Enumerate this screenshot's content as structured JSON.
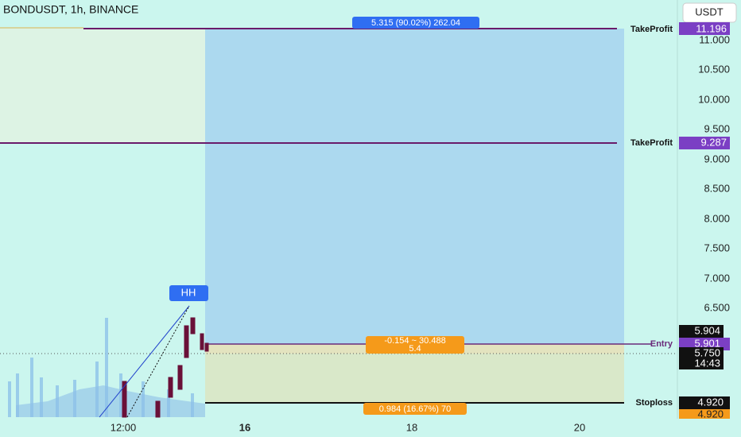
{
  "header": {
    "symbol": "BONDUSDT, 1h, BINANCE",
    "currency": "USDT"
  },
  "price_axis": {
    "ticks": [
      "11.000",
      "10.500",
      "10.000",
      "9.500",
      "9.000",
      "8.500",
      "8.000",
      "7.500",
      "7.000",
      "6.500"
    ]
  },
  "price_tags": {
    "take_profit_2": "11.196",
    "take_profit_1": "9.287",
    "last_high": "5.904",
    "entry": "5.901",
    "last_price": "5.750",
    "countdown": "14:43",
    "stoploss": "4.920",
    "stoploss_close": "4.920"
  },
  "levels": {
    "take_profit_2": "TakeProfit",
    "take_profit_1": "TakeProfit",
    "entry": "Entry",
    "stoploss": "Stoploss"
  },
  "position_box": {
    "target_label": "5.315 (90.02%) 262.04",
    "entry_label_1": "-0.154 ~ 30.488",
    "entry_label_2": "5.4",
    "stop_label": "0.984 (16.67%) 70"
  },
  "marker": "HH",
  "time_axis": [
    "12:00",
    "16",
    "18",
    "20"
  ]
}
